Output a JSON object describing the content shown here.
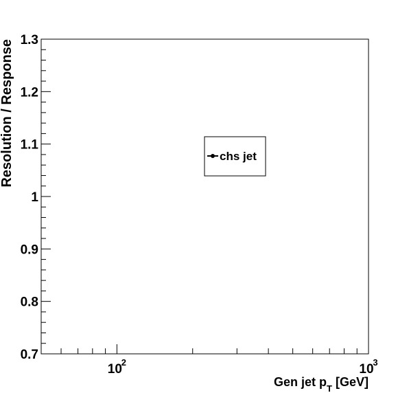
{
  "chart_data": {
    "type": "scatter",
    "title": "",
    "xlabel_main": "Gen jet p",
    "xlabel_sub": "T",
    "xlabel_unit": "[GeV]",
    "ylabel": "Resolution / Response",
    "xscale": "log",
    "xlim": [
      50,
      1000
    ],
    "ylim": [
      0.7,
      1.3
    ],
    "y_ticks": [
      "0.7",
      "0.8",
      "0.9",
      "1",
      "1.1",
      "1.2",
      "1.3"
    ],
    "x_tick_base": "10",
    "x_ticks": [
      {
        "value": 100,
        "exp": "2"
      },
      {
        "value": 1000,
        "exp": "3"
      }
    ],
    "grid": false,
    "legend_position": "center",
    "series": [
      {
        "name": "chs jet",
        "x": [],
        "y": []
      }
    ]
  }
}
